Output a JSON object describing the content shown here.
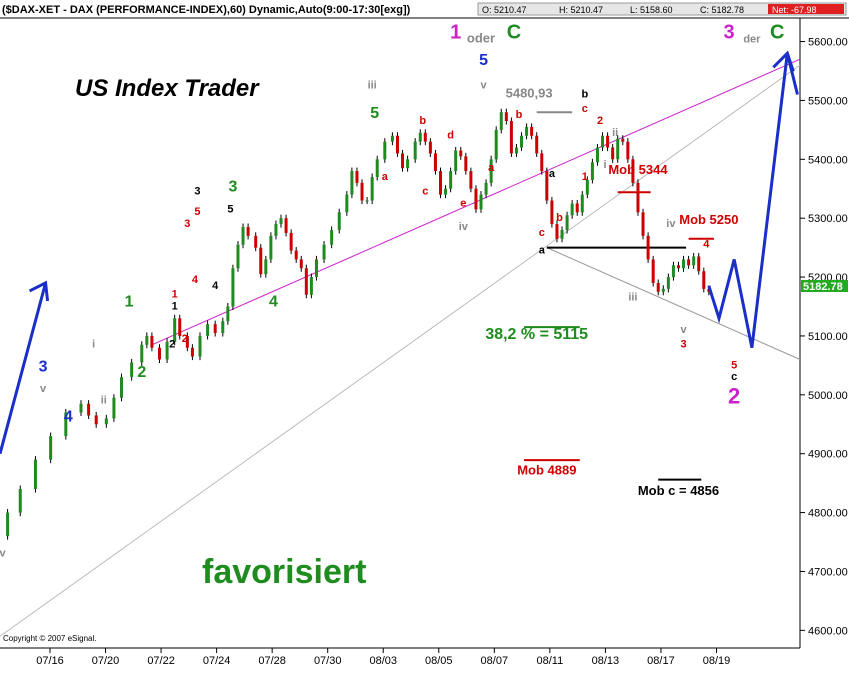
{
  "header": {
    "title": "($DAX-XET - DAX (PERFORMANCE-INDEX),60) Dynamic,Auto(9:00-17:30[exg])",
    "open": "O: 5210.47",
    "high": "H: 5210.47",
    "low": "L: 5158.60",
    "close": "C: 5182.78",
    "net": "Net: -67.98"
  },
  "brand": "US Index Trader",
  "favorit": "favorisiert",
  "copyright": "Copyright © 2007 eSignal.",
  "last_price": "5182.78",
  "colors": {
    "up": "#1f8a1f",
    "down": "#cc0000",
    "wave": "#1a2ec8",
    "pink": "#cc22cc",
    "grey": "#888888",
    "green": "#1e8c1e",
    "red": "#d00000"
  },
  "chart_data": {
    "type": "candlestick",
    "x_ticks": [
      "07/16",
      "07/20",
      "07/22",
      "07/24",
      "07/28",
      "07/30",
      "08/03",
      "08/05",
      "08/07",
      "08/11",
      "08/13",
      "08/17",
      "08/19"
    ],
    "ylim": [
      4570,
      5640
    ],
    "y_ticks": [
      4600,
      4700,
      4800,
      4900,
      5000,
      5100,
      5200,
      5300,
      5400,
      5500,
      5600
    ],
    "y_tick_labels": [
      "4600.00",
      "4700.00",
      "4800.00",
      "4900.00",
      "5000.00",
      "5100.00",
      "5200.00",
      "5300.00",
      "5400.00",
      "5500.00",
      "5600.00"
    ],
    "price_path": [
      [
        0,
        4760
      ],
      [
        3,
        4800
      ],
      [
        8,
        4840
      ],
      [
        14,
        4890
      ],
      [
        20,
        4930
      ],
      [
        26,
        4970
      ],
      [
        32,
        4985
      ],
      [
        35,
        4965
      ],
      [
        38,
        4950
      ],
      [
        42,
        4960
      ],
      [
        45,
        4995
      ],
      [
        48,
        5030
      ],
      [
        52,
        5055
      ],
      [
        56,
        5085
      ],
      [
        58,
        5100
      ],
      [
        60,
        5080
      ],
      [
        63,
        5060
      ],
      [
        66,
        5090
      ],
      [
        69,
        5130
      ],
      [
        71,
        5100
      ],
      [
        74,
        5080
      ],
      [
        76,
        5065
      ],
      [
        79,
        5100
      ],
      [
        82,
        5120
      ],
      [
        85,
        5105
      ],
      [
        88,
        5125
      ],
      [
        90,
        5150
      ],
      [
        92,
        5215
      ],
      [
        94,
        5255
      ],
      [
        96,
        5285
      ],
      [
        98,
        5270
      ],
      [
        101,
        5250
      ],
      [
        103,
        5205
      ],
      [
        105,
        5230
      ],
      [
        107,
        5270
      ],
      [
        109,
        5290
      ],
      [
        111,
        5300
      ],
      [
        113,
        5275
      ],
      [
        115,
        5245
      ],
      [
        117,
        5230
      ],
      [
        119,
        5215
      ],
      [
        121,
        5170
      ],
      [
        123,
        5200
      ],
      [
        125,
        5230
      ],
      [
        128,
        5255
      ],
      [
        131,
        5280
      ],
      [
        134,
        5310
      ],
      [
        137,
        5340
      ],
      [
        139,
        5380
      ],
      [
        141,
        5360
      ],
      [
        143,
        5330
      ],
      [
        145,
        5330
      ],
      [
        147,
        5370
      ],
      [
        149,
        5400
      ],
      [
        152,
        5430
      ],
      [
        155,
        5440
      ],
      [
        157,
        5410
      ],
      [
        159,
        5385
      ],
      [
        161,
        5400
      ],
      [
        164,
        5430
      ],
      [
        166,
        5445
      ],
      [
        168,
        5430
      ],
      [
        170,
        5410
      ],
      [
        172,
        5380
      ],
      [
        174,
        5340
      ],
      [
        176,
        5350
      ],
      [
        178,
        5380
      ],
      [
        180,
        5415
      ],
      [
        182,
        5405
      ],
      [
        184,
        5380
      ],
      [
        186,
        5350
      ],
      [
        188,
        5315
      ],
      [
        190,
        5340
      ],
      [
        192,
        5360
      ],
      [
        194,
        5400
      ],
      [
        196,
        5450
      ],
      [
        198,
        5480
      ],
      [
        200,
        5465
      ],
      [
        202,
        5410
      ],
      [
        204,
        5420
      ],
      [
        206,
        5440
      ],
      [
        208,
        5455
      ],
      [
        210,
        5440
      ],
      [
        212,
        5410
      ],
      [
        214,
        5380
      ],
      [
        216,
        5330
      ],
      [
        218,
        5290
      ],
      [
        220,
        5265
      ],
      [
        222,
        5280
      ],
      [
        224,
        5305
      ],
      [
        226,
        5325
      ],
      [
        228,
        5310
      ],
      [
        230,
        5340
      ],
      [
        232,
        5365
      ],
      [
        234,
        5395
      ],
      [
        236,
        5420
      ],
      [
        238,
        5440
      ],
      [
        240,
        5420
      ],
      [
        242,
        5400
      ],
      [
        244,
        5435
      ],
      [
        246,
        5430
      ],
      [
        248,
        5400
      ],
      [
        250,
        5360
      ],
      [
        252,
        5310
      ],
      [
        254,
        5270
      ],
      [
        256,
        5230
      ],
      [
        258,
        5190
      ],
      [
        260,
        5175
      ],
      [
        262,
        5180
      ],
      [
        264,
        5200
      ],
      [
        266,
        5220
      ],
      [
        268,
        5215
      ],
      [
        270,
        5230
      ],
      [
        272,
        5220
      ],
      [
        274,
        5235
      ],
      [
        276,
        5210
      ],
      [
        278,
        5180
      ],
      [
        280,
        5175
      ]
    ],
    "price_path_x_note": "",
    "projection": [
      [
        280,
        5185
      ],
      [
        284,
        5130
      ],
      [
        290,
        5230
      ],
      [
        297,
        5080
      ],
      [
        311,
        5580
      ],
      [
        315,
        5510
      ]
    ],
    "early_arrow": [
      [
        0,
        4900
      ],
      [
        18,
        5190
      ]
    ],
    "trendlines": [
      {
        "from": [
          60,
          5085
        ],
        "to": [
          316,
          5570
        ],
        "color": "#cc22cc"
      },
      {
        "from": [
          0,
          4590
        ],
        "to": [
          316,
          5560
        ],
        "color": "#bbbbbb"
      },
      {
        "from": [
          216,
          5250
        ],
        "to": [
          316,
          5060
        ],
        "color": "#999999"
      }
    ],
    "hlines": [
      {
        "y": 5250,
        "x0": 216,
        "x1": 271,
        "color": "#000000"
      },
      {
        "y": 5480,
        "x0": 212,
        "x1": 226,
        "color": "#888888"
      },
      {
        "y": 5115,
        "x0": 207,
        "x1": 229,
        "color": "#1e8c1e"
      },
      {
        "y": 4889,
        "x0": 207,
        "x1": 229,
        "color": "#cc0000"
      },
      {
        "y": 5344,
        "x0": 244,
        "x1": 257,
        "color": "#cc0000"
      },
      {
        "y": 5265,
        "x0": 272,
        "x1": 282,
        "color": "#cc0000"
      },
      {
        "y": 4856,
        "x0": 260,
        "x1": 277,
        "color": "#000000"
      }
    ],
    "wave_labels": [
      {
        "t": "v",
        "x": 1,
        "y": 4725,
        "c": "grey"
      },
      {
        "t": "3",
        "x": 17,
        "y": 5040,
        "c": "wave"
      },
      {
        "t": "v",
        "x": 17,
        "y": 5005,
        "c": "grey"
      },
      {
        "t": "4",
        "x": 27,
        "y": 4955,
        "c": "wave"
      },
      {
        "t": "i",
        "x": 37,
        "y": 5080,
        "c": "grey"
      },
      {
        "t": "ii",
        "x": 41,
        "y": 4985,
        "c": "grey"
      },
      {
        "t": "1",
        "x": 51,
        "y": 5150,
        "c": "green"
      },
      {
        "t": "2",
        "x": 56,
        "y": 5030,
        "c": "green"
      },
      {
        "t": "1",
        "x": 69,
        "y": 5145,
        "c": "black"
      },
      {
        "t": "2",
        "x": 68,
        "y": 5080,
        "c": "black"
      },
      {
        "t": "2",
        "x": 73,
        "y": 5090,
        "c": "red"
      },
      {
        "t": "1",
        "x": 69,
        "y": 5165,
        "c": "red"
      },
      {
        "t": "3",
        "x": 74,
        "y": 5285,
        "c": "red"
      },
      {
        "t": "4",
        "x": 77,
        "y": 5190,
        "c": "red"
      },
      {
        "t": "5",
        "x": 78,
        "y": 5305,
        "c": "red"
      },
      {
        "t": "3",
        "x": 78,
        "y": 5340,
        "c": "black"
      },
      {
        "t": "4",
        "x": 85,
        "y": 5180,
        "c": "black"
      },
      {
        "t": "5",
        "x": 91,
        "y": 5310,
        "c": "black"
      },
      {
        "t": "3",
        "x": 92,
        "y": 5345,
        "c": "green"
      },
      {
        "t": "4",
        "x": 108,
        "y": 5150,
        "c": "green"
      },
      {
        "t": "iii",
        "x": 147,
        "y": 5520,
        "c": "grey"
      },
      {
        "t": "5",
        "x": 148,
        "y": 5470,
        "c": "green"
      },
      {
        "t": "b",
        "x": 167,
        "y": 5460,
        "c": "red"
      },
      {
        "t": "d",
        "x": 178,
        "y": 5435,
        "c": "red"
      },
      {
        "t": "a",
        "x": 152,
        "y": 5365,
        "c": "red"
      },
      {
        "t": "c",
        "x": 168,
        "y": 5340,
        "c": "red"
      },
      {
        "t": "e",
        "x": 183,
        "y": 5320,
        "c": "red"
      },
      {
        "t": "iv",
        "x": 183,
        "y": 5280,
        "c": "grey"
      },
      {
        "t": "1",
        "x": 180,
        "y": 5605,
        "c": "pink"
      },
      {
        "t": "oder",
        "x": 190,
        "y": 5598,
        "c": "grey"
      },
      {
        "t": "C",
        "x": 203,
        "y": 5605,
        "c": "green"
      },
      {
        "t": "5",
        "x": 191,
        "y": 5560,
        "c": "wave"
      },
      {
        "t": "v",
        "x": 191,
        "y": 5520,
        "c": "grey"
      },
      {
        "t": "b",
        "x": 205,
        "y": 5470,
        "c": "red"
      },
      {
        "t": "a",
        "x": 194,
        "y": 5380,
        "c": "red"
      },
      {
        "t": "5480,93",
        "x": 209,
        "y": 5505,
        "c": "grey"
      },
      {
        "t": "b",
        "x": 231,
        "y": 5505,
        "c": "black"
      },
      {
        "t": "c",
        "x": 231,
        "y": 5480,
        "c": "red"
      },
      {
        "t": "2",
        "x": 237,
        "y": 5460,
        "c": "red"
      },
      {
        "t": "ii",
        "x": 243,
        "y": 5440,
        "c": "grey"
      },
      {
        "t": "i",
        "x": 239,
        "y": 5385,
        "c": "grey"
      },
      {
        "t": "1",
        "x": 231,
        "y": 5365,
        "c": "red"
      },
      {
        "t": "a",
        "x": 218,
        "y": 5370,
        "c": "black"
      },
      {
        "t": "b",
        "x": 221,
        "y": 5295,
        "c": "red"
      },
      {
        "t": "c",
        "x": 214,
        "y": 5270,
        "c": "red"
      },
      {
        "t": "a",
        "x": 214,
        "y": 5240,
        "c": "black"
      },
      {
        "t": "Mob 5344",
        "x": 252,
        "y": 5375,
        "c": "red"
      },
      {
        "t": "iv",
        "x": 265,
        "y": 5285,
        "c": "grey"
      },
      {
        "t": "Mob 5250",
        "x": 280,
        "y": 5290,
        "c": "red"
      },
      {
        "t": "4",
        "x": 279,
        "y": 5250,
        "c": "red"
      },
      {
        "t": "iii",
        "x": 250,
        "y": 5160,
        "c": "grey"
      },
      {
        "t": "v",
        "x": 270,
        "y": 5105,
        "c": "grey"
      },
      {
        "t": "3",
        "x": 270,
        "y": 5080,
        "c": "red"
      },
      {
        "t": "38,2 % = 5115",
        "x": 212,
        "y": 5095,
        "c": "green"
      },
      {
        "t": "5",
        "x": 290,
        "y": 5045,
        "c": "red"
      },
      {
        "t": "c",
        "x": 290,
        "y": 5025,
        "c": "black"
      },
      {
        "t": "2",
        "x": 290,
        "y": 4985,
        "c": "pink"
      },
      {
        "t": "Mob 4889",
        "x": 216,
        "y": 4865,
        "c": "red"
      },
      {
        "t": "Mob c = 4856",
        "x": 268,
        "y": 4830,
        "c": "black"
      },
      {
        "t": "3",
        "x": 288,
        "y": 5605,
        "c": "pink"
      },
      {
        "t": "der",
        "x": 297,
        "y": 5598,
        "c": "grey"
      },
      {
        "t": "C",
        "x": 307,
        "y": 5605,
        "c": "green"
      }
    ]
  }
}
